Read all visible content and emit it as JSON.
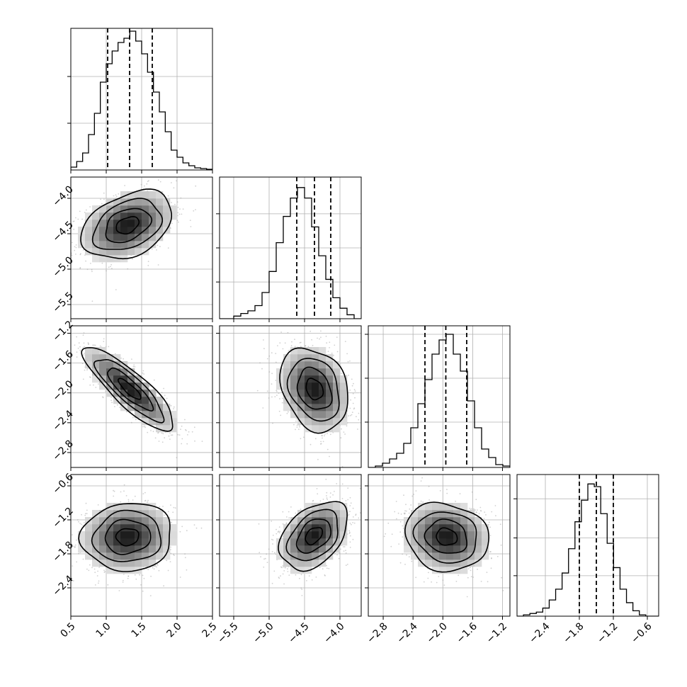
{
  "chart_data": {
    "type": "corner",
    "grid": true,
    "n_params": 4,
    "params": [
      {
        "range": [
          0.5,
          2.5
        ],
        "ticks": [
          0.5,
          1.0,
          1.5,
          2.0,
          2.5
        ],
        "tick_labels": [
          "0.5",
          "1.0",
          "1.5",
          "2.0",
          "2.5"
        ],
        "quantiles": [
          1.02,
          1.33,
          1.65
        ]
      },
      {
        "range": [
          -5.7,
          -3.7
        ],
        "ticks": [
          -5.5,
          -5.0,
          -4.5,
          -4.0
        ],
        "tick_labels": [
          "−5.5",
          "−5.0",
          "−4.5",
          "−4.0"
        ],
        "quantiles": [
          -4.61,
          -4.36,
          -4.13
        ]
      },
      {
        "range": [
          -3.0,
          -1.1
        ],
        "ticks": [
          -2.8,
          -2.4,
          -2.0,
          -1.6,
          -1.2
        ],
        "tick_labels": [
          "−2.8",
          "−2.4",
          "−2.0",
          "−1.6",
          "−1.2"
        ],
        "quantiles": [
          -2.24,
          -1.96,
          -1.68
        ]
      },
      {
        "range": [
          -2.9,
          -0.4
        ],
        "ticks": [
          -2.4,
          -1.8,
          -1.2,
          -0.6
        ],
        "tick_labels": [
          "−2.4",
          "−1.8",
          "−1.2",
          "−0.6"
        ],
        "quantiles": [
          -1.8,
          -1.5,
          -1.2
        ]
      }
    ],
    "histograms": [
      {
        "counts": [
          0.02,
          0.06,
          0.12,
          0.25,
          0.4,
          0.62,
          0.75,
          0.84,
          0.9,
          0.93,
          0.98,
          0.91,
          0.82,
          0.69,
          0.55,
          0.41,
          0.27,
          0.14,
          0.09,
          0.05,
          0.03,
          0.015,
          0.01,
          0.005
        ],
        "ymax": 1.0,
        "yticks": [
          0.33,
          0.66
        ]
      },
      {
        "counts": [
          0.0,
          0.0,
          0.02,
          0.04,
          0.06,
          0.1,
          0.2,
          0.36,
          0.58,
          0.78,
          0.92,
          1.0,
          0.92,
          0.7,
          0.48,
          0.3,
          0.16,
          0.08,
          0.03,
          0.0
        ],
        "ymax": 1.08,
        "yticks": [
          0.28,
          0.54,
          0.8
        ]
      },
      {
        "counts": [
          0.0,
          0.01,
          0.03,
          0.06,
          0.1,
          0.17,
          0.28,
          0.45,
          0.62,
          0.8,
          0.9,
          0.94,
          0.8,
          0.68,
          0.47,
          0.28,
          0.13,
          0.07,
          0.02,
          0.01
        ],
        "ymax": 1.0,
        "yticks": [
          0.32,
          0.63,
          0.94
        ]
      },
      {
        "counts": [
          0.0,
          0.01,
          0.02,
          0.03,
          0.06,
          0.12,
          0.2,
          0.32,
          0.5,
          0.7,
          0.86,
          0.98,
          0.96,
          0.76,
          0.54,
          0.36,
          0.2,
          0.1,
          0.04,
          0.01,
          0.0,
          0.0
        ],
        "ymax": 1.05,
        "yticks": [
          0.3,
          0.58,
          0.87
        ]
      }
    ],
    "pairs": [
      {
        "x": 0,
        "y": 1,
        "mean": [
          1.3,
          -4.38
        ],
        "sd": [
          0.32,
          0.24
        ],
        "corr": 0.35
      },
      {
        "x": 0,
        "y": 2,
        "mean": [
          1.33,
          -1.95
        ],
        "sd": [
          0.32,
          0.28
        ],
        "corr": -0.85
      },
      {
        "x": 1,
        "y": 2,
        "mean": [
          -4.36,
          -1.95
        ],
        "sd": [
          0.24,
          0.28
        ],
        "corr": -0.25
      },
      {
        "x": 0,
        "y": 3,
        "mean": [
          1.3,
          -1.5
        ],
        "sd": [
          0.32,
          0.3
        ],
        "corr": 0.05
      },
      {
        "x": 1,
        "y": 3,
        "mean": [
          -4.37,
          -1.48
        ],
        "sd": [
          0.24,
          0.3
        ],
        "corr": 0.4
      },
      {
        "x": 2,
        "y": 3,
        "mean": [
          -1.95,
          -1.5
        ],
        "sd": [
          0.28,
          0.3
        ],
        "corr": -0.12
      }
    ],
    "contour_levels_sigma": [
      0.5,
      1.0,
      1.5,
      2.0
    ],
    "colors": {
      "hist": "#000000",
      "contour": "#000000",
      "points": "#9a9a9a",
      "grid": "#b0b0b0",
      "quantile": "#000000"
    }
  }
}
